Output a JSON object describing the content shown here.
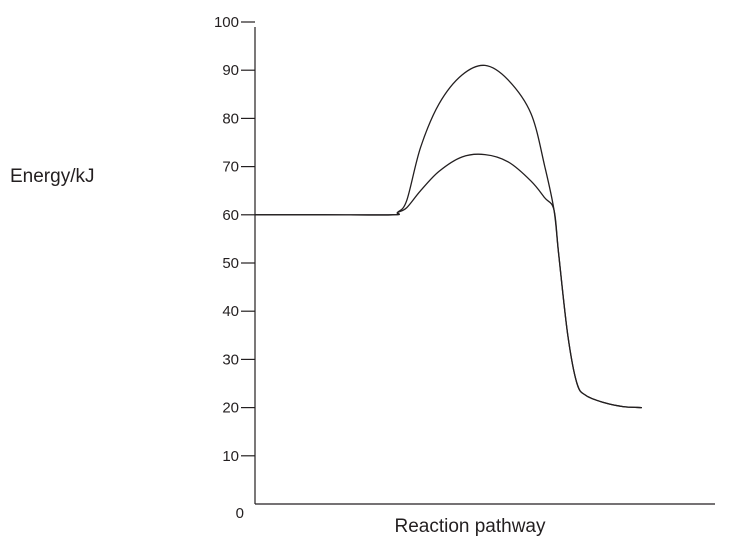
{
  "chart_data": {
    "type": "line",
    "title": "",
    "xlabel": "Reaction pathway",
    "ylabel": "Energy/kJ",
    "ylim": [
      0,
      100
    ],
    "yticks": [
      0,
      10,
      20,
      30,
      40,
      50,
      60,
      70,
      80,
      90,
      100
    ],
    "grid": false,
    "legend": "none",
    "series": [
      {
        "x": [
          0,
          15,
          30,
          31,
          33,
          36,
          40,
          45,
          50,
          55,
          60,
          63,
          65,
          66,
          68,
          70,
          72,
          76,
          80,
          84
        ],
        "y": [
          60,
          60,
          60,
          60.5,
          63,
          74,
          83,
          89,
          91,
          88,
          81,
          70,
          61,
          52,
          35,
          25,
          22.5,
          21,
          20.2,
          20
        ]
      },
      {
        "x": [
          0,
          15,
          30,
          31,
          33,
          36,
          40,
          45,
          50,
          55,
          60,
          63,
          65,
          66,
          68,
          70,
          72,
          76,
          80,
          84
        ],
        "y": [
          60,
          60,
          60,
          60.5,
          61.5,
          65,
          69,
          72,
          72.5,
          71,
          67,
          63.5,
          61,
          52,
          35,
          25,
          22.5,
          21,
          20.2,
          20
        ]
      }
    ]
  },
  "colors": {
    "ink": "#231f20",
    "background": "#ffffff"
  }
}
